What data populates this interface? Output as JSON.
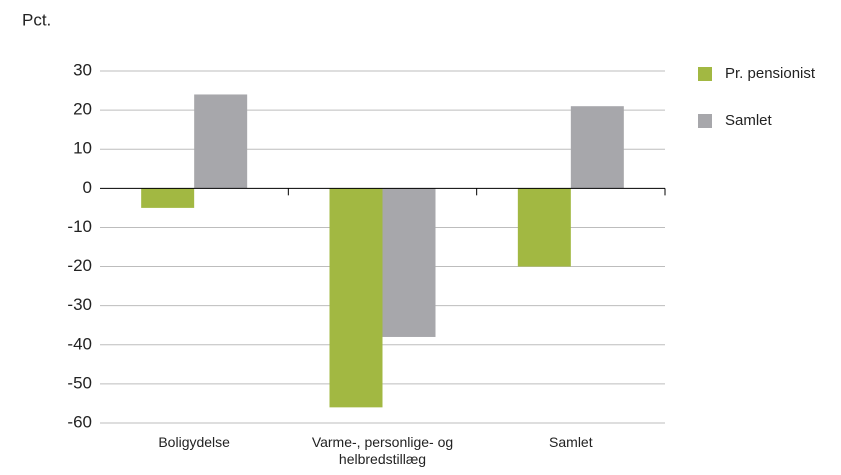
{
  "chart_data": {
    "type": "bar",
    "y_label": "Pct.",
    "categories": [
      "Boligydelse",
      "Varme-, personlige- og helbredstillæg",
      "Samlet"
    ],
    "series": [
      {
        "name": "Pr. pensionist",
        "color": "#a2b842",
        "values": [
          -5,
          -56,
          -20
        ]
      },
      {
        "name": "Samlet",
        "color": "#a7a7ab",
        "values": [
          24,
          -38,
          21
        ]
      }
    ],
    "ylim": [
      -60,
      30
    ],
    "yticks": [
      -60,
      -50,
      -40,
      -30,
      -20,
      -10,
      0,
      10,
      20,
      30
    ],
    "grid": true,
    "legend": "right"
  }
}
